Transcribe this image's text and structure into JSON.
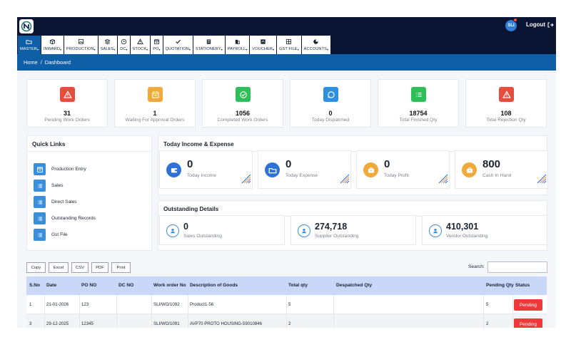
{
  "header": {
    "avatar_initials": "SLI",
    "logout_label": "Logout",
    "brand_color": "#0a1433",
    "accent_color": "#0e5fa6"
  },
  "nav": [
    {
      "label": "MASTER",
      "icon": "folder-icon",
      "active": true
    },
    {
      "label": "INWARD",
      "icon": "box-icon",
      "active": false
    },
    {
      "label": "PRODUCTION",
      "icon": "image-icon",
      "active": false
    },
    {
      "label": "SALES",
      "icon": "layers-icon",
      "active": false
    },
    {
      "label": "DC",
      "icon": "clock-icon",
      "active": false
    },
    {
      "label": "STOCK",
      "icon": "warning-icon",
      "active": false
    },
    {
      "label": "PO",
      "icon": "calendar-icon",
      "active": false
    },
    {
      "label": "QUOTATION",
      "icon": "check-icon",
      "active": false
    },
    {
      "label": "STATIONERY",
      "icon": "book-icon",
      "active": false
    },
    {
      "label": "PAYROLL",
      "icon": "building-icon",
      "active": false
    },
    {
      "label": "VOUCHER",
      "icon": "ticket-icon",
      "active": false
    },
    {
      "label": "GST FILE",
      "icon": "grid-icon",
      "active": false
    },
    {
      "label": "ACCOUNTS",
      "icon": "chart-icon",
      "active": false
    }
  ],
  "breadcrumb": {
    "home": "Home",
    "separator": "/",
    "current": "Dashboard"
  },
  "stats": [
    {
      "value": "31",
      "label": "Pending Work Orders",
      "color": "#e84c3d",
      "icon": "warning-icon"
    },
    {
      "value": "1",
      "label": "Waiting For Approval Orders",
      "color": "#f0a93b",
      "icon": "calendar-icon"
    },
    {
      "value": "1056",
      "label": "Completed Work Orders",
      "color": "#2fbf5a",
      "icon": "check-circle-icon"
    },
    {
      "value": "0",
      "label": "Today Dispatched",
      "color": "#2f8fe0",
      "icon": "chat-icon"
    },
    {
      "value": "18754",
      "label": "Total Finished Qty",
      "color": "#2fbf5a",
      "icon": "list-icon"
    },
    {
      "value": "108",
      "label": "Total Rejection Qty",
      "color": "#e84c3d",
      "icon": "warning-icon"
    }
  ],
  "quick_links": {
    "title": "Quick Links",
    "items": [
      {
        "label": "Production Entry",
        "icon": "calendar-icon"
      },
      {
        "label": "Sales",
        "icon": "list-icon"
      },
      {
        "label": "Direct Sales",
        "icon": "list-icon"
      },
      {
        "label": "Outstanding Records",
        "icon": "list-icon"
      },
      {
        "label": "Gst File",
        "icon": "list-icon"
      }
    ]
  },
  "income": {
    "title": "Today Income & Expense",
    "cards": [
      {
        "value": "0",
        "label": "Today Income",
        "color": "#2f72d6",
        "icon": "wallet-icon"
      },
      {
        "value": "0",
        "label": "Today Expense",
        "color": "#2f72d6",
        "icon": "folder-icon"
      },
      {
        "value": "0",
        "label": "Today Profit",
        "color": "#f0a93b",
        "icon": "briefcase-icon"
      },
      {
        "value": "800",
        "label": "Cash In Hand",
        "color": "#f0a93b",
        "icon": "briefcase-icon"
      }
    ]
  },
  "outstanding": {
    "title": "Outstanding Details",
    "cards": [
      {
        "value": "0",
        "label": "Sales Outstanding",
        "icon": "user-icon"
      },
      {
        "value": "274,718",
        "label": "Supplier Outstanding",
        "icon": "user-icon"
      },
      {
        "value": "410,301",
        "label": "Vendor Outstanding",
        "icon": "user-icon"
      }
    ]
  },
  "table_tools": {
    "buttons": [
      "Copy",
      "Excel",
      "CSV",
      "PDF",
      "Print"
    ],
    "search_label": "Search:",
    "search_value": ""
  },
  "table": {
    "headers": [
      "S.No",
      "Date",
      "PO NO",
      "DC NO",
      "Work order No",
      "Description of Goods",
      "Total qty",
      "Despatched Qty",
      "Pending Qty",
      "Status"
    ],
    "rows": [
      {
        "sno": "1",
        "date": "21-01-2026",
        "po": "123",
        "dc": "",
        "wo": "SLI/WO/1092",
        "desc": "Product1-56",
        "total": "5",
        "desp": "",
        "pending": "5",
        "status": "Pending"
      },
      {
        "sno": "3",
        "date": "29-12-2025",
        "po": "12345",
        "dc": "",
        "wo": "SLI/WO/1091",
        "desc": "AVP70 PROTO HOUSING-59010846",
        "total": "2",
        "desp": "",
        "pending": "2",
        "status": "Pending"
      }
    ]
  }
}
